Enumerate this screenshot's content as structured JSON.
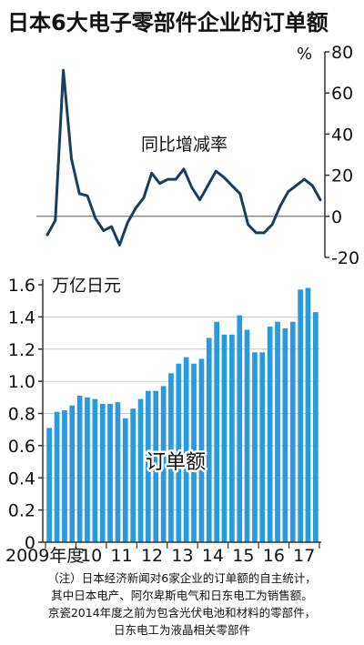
{
  "title": "日本6大电子零部件企业的订单额",
  "notes": [
    "（注）日本经济新闻对6家企业的订单额的自主统计，",
    "其中日本电产、阿尔卑斯电气和日东电工为销售额。",
    "京瓷2014年度之前为包含光伏电池和材料的零部件，",
    "日东电工为液晶相关零部件"
  ],
  "colors": {
    "line": "#1a3d5c",
    "bar": "#2a9ae0",
    "axis": "#333333",
    "grid": "#bbbbbb"
  },
  "chart_data": [
    {
      "type": "line",
      "series_label": "同比增减率",
      "unit": "%",
      "ylim": [
        -20,
        80
      ],
      "yticks": [
        "80",
        "60",
        "40",
        "20",
        "0",
        "-20"
      ],
      "values": [
        -9,
        -2,
        71,
        28,
        11,
        10,
        -1,
        -7,
        -5,
        -14,
        -3,
        4,
        9,
        21,
        16,
        18,
        18,
        23,
        14,
        8,
        15,
        22,
        19,
        15,
        11,
        -4,
        -8,
        -8,
        -4,
        5,
        12,
        15,
        18,
        15,
        8
      ]
    },
    {
      "type": "bar",
      "series_label": "订单额",
      "unit": "万亿日元",
      "ylim": [
        0,
        1.6
      ],
      "yticks": [
        "1.6",
        "1.4",
        "1.2",
        "1.0",
        "0.8",
        "0.6",
        "0.4",
        "0.2",
        "0"
      ],
      "x_labels": [
        "2009年度",
        "10",
        "11",
        "12",
        "13",
        "14",
        "15",
        "16",
        "17"
      ],
      "values": [
        0.71,
        0.81,
        0.82,
        0.85,
        0.91,
        0.9,
        0.89,
        0.86,
        0.86,
        0.87,
        0.77,
        0.83,
        0.89,
        0.94,
        0.94,
        0.97,
        1.05,
        1.11,
        1.15,
        1.11,
        1.14,
        1.27,
        1.37,
        1.29,
        1.29,
        1.41,
        1.32,
        1.18,
        1.18,
        1.34,
        1.37,
        1.33,
        1.37,
        1.57,
        1.58,
        1.43
      ]
    }
  ]
}
